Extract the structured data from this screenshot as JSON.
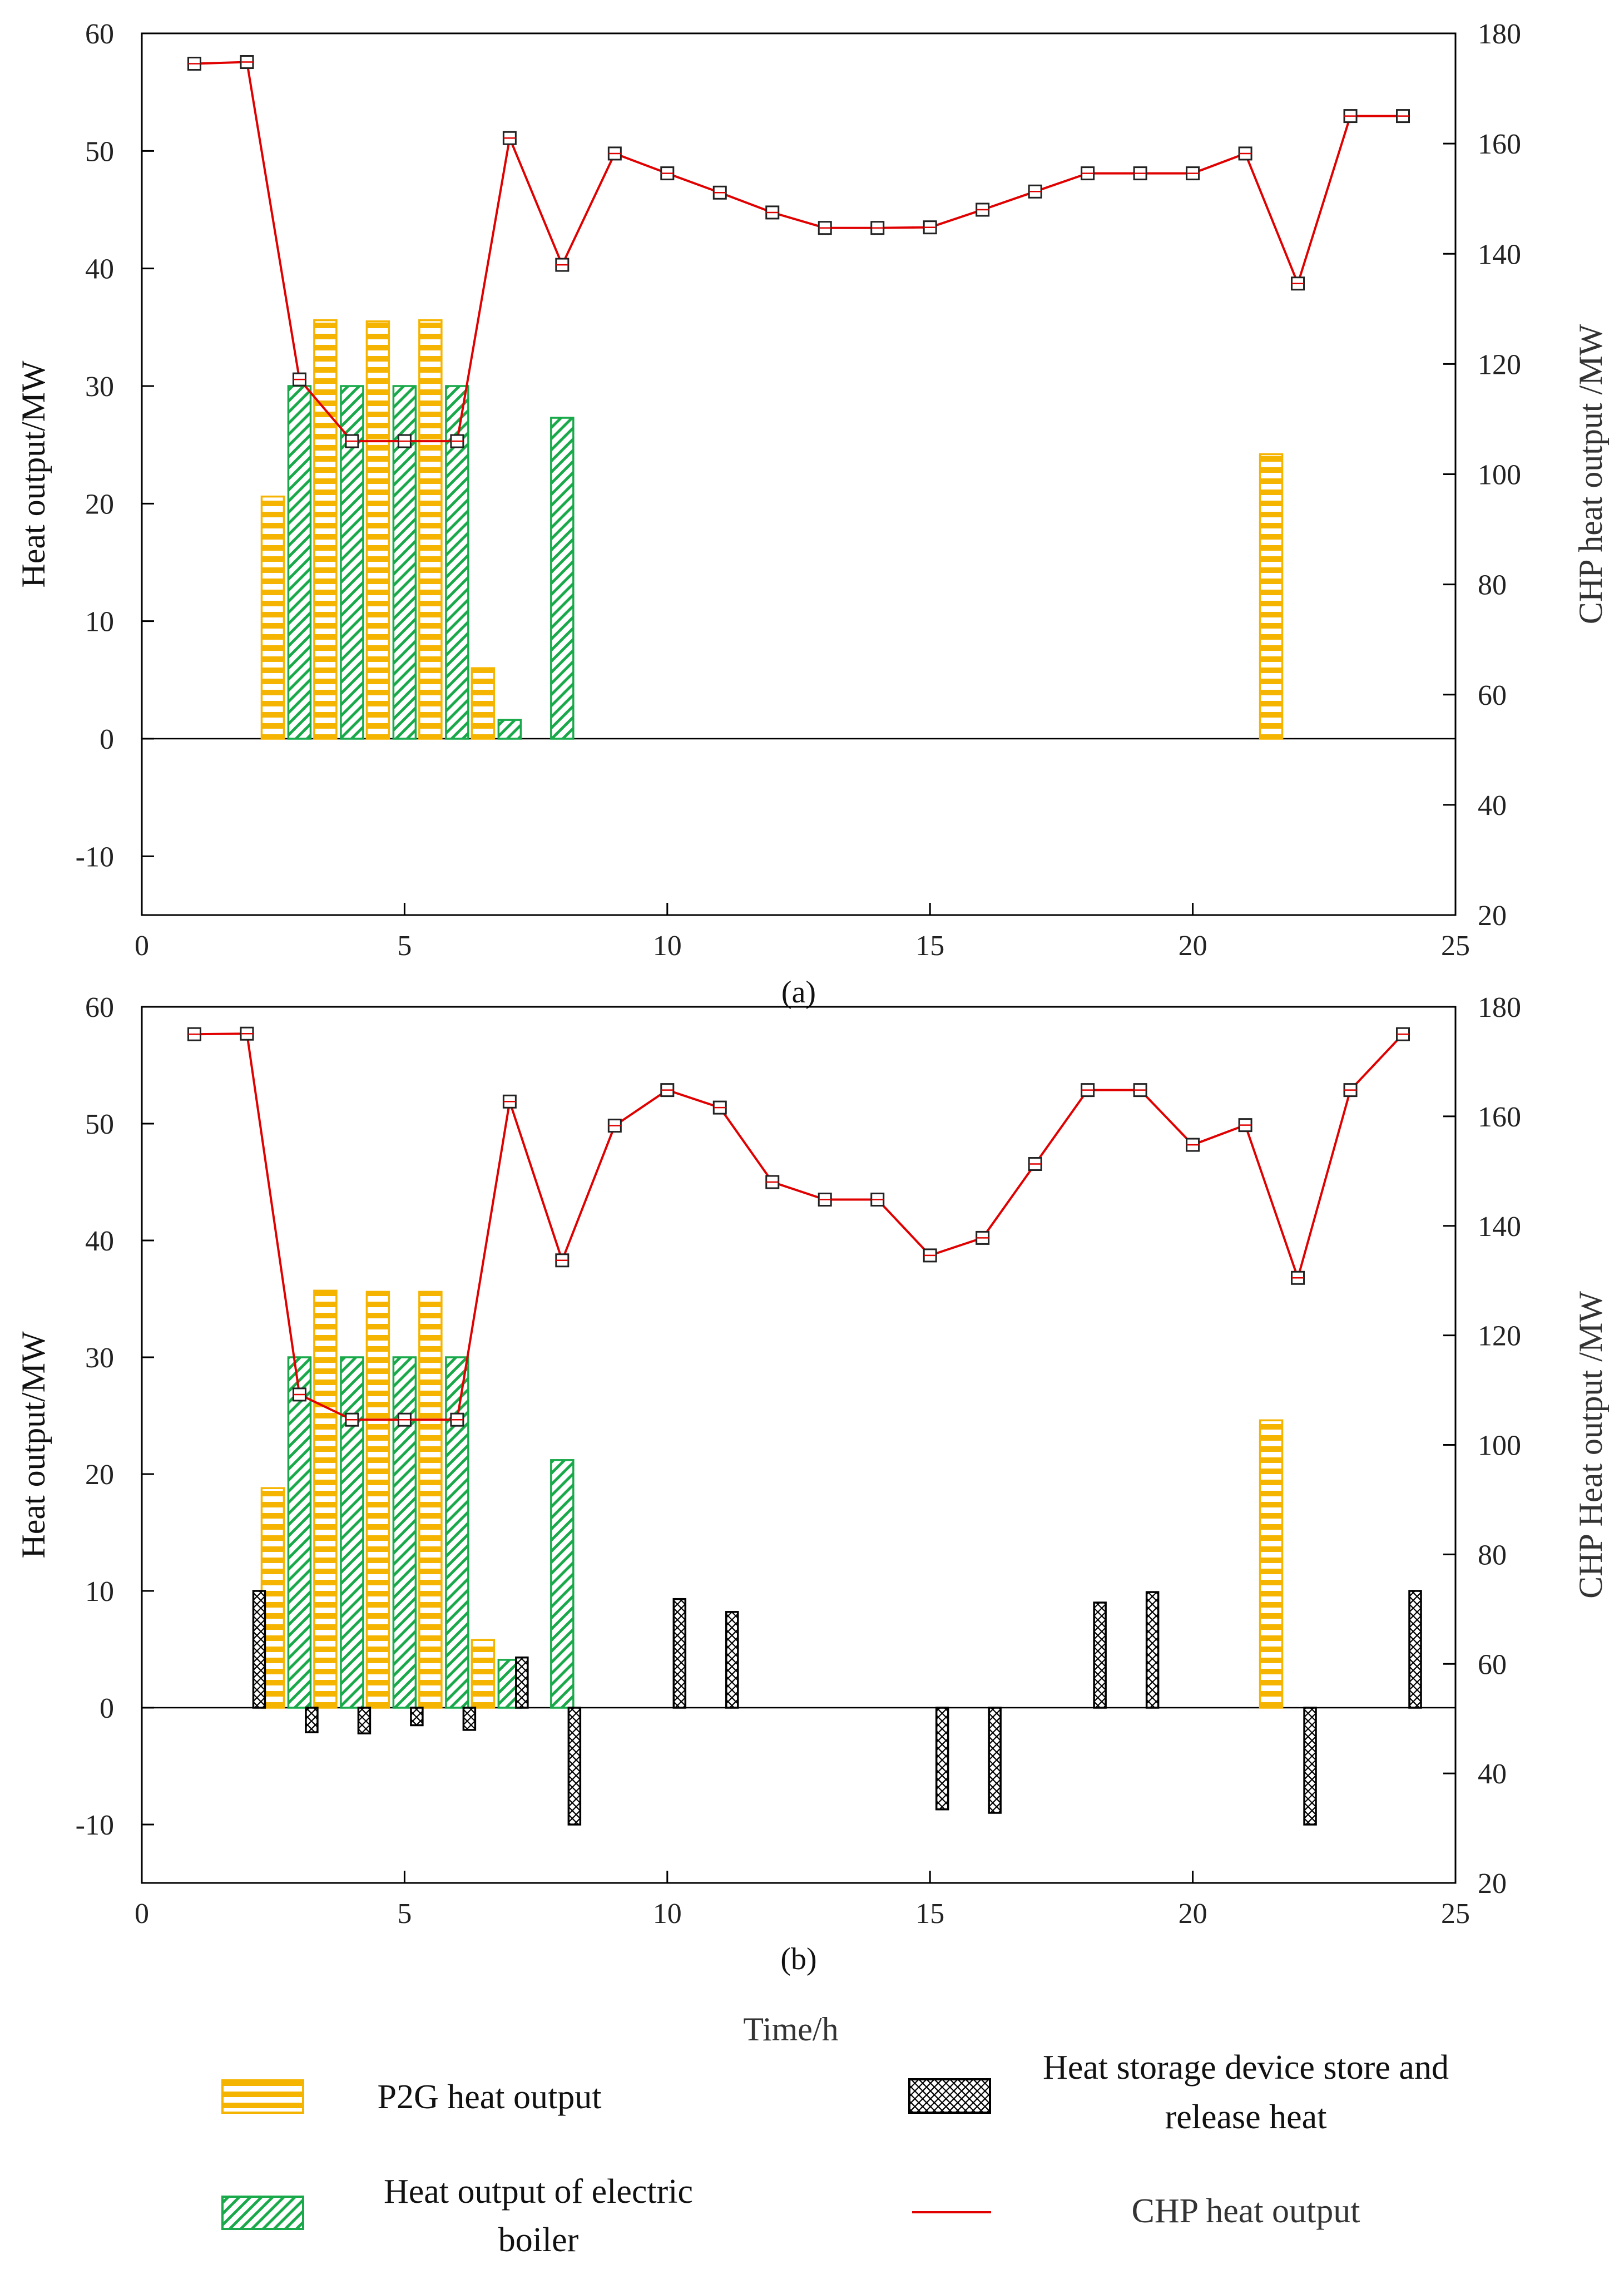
{
  "colors": {
    "p2g": "#f5b400",
    "eb": "#19a94a",
    "storage": "#000000",
    "chp": "#e00000",
    "axis": "#000000"
  },
  "legend": {
    "p2g": "P2G heat output",
    "eb_line1": "Heat output of electric",
    "eb_line2": "boiler",
    "storage_line1": "Heat storage device store and",
    "storage_line2": "release heat",
    "chp": "CHP heat  output"
  },
  "x_label": "Time/h",
  "chart_data": [
    {
      "type": "bar",
      "caption": "(a)",
      "xlim": [
        0,
        25
      ],
      "xticks": [
        0,
        5,
        10,
        15,
        20,
        25
      ],
      "ylim": [
        -15,
        60
      ],
      "yticks": [
        -10,
        0,
        10,
        20,
        30,
        40,
        50,
        60
      ],
      "y2lim": [
        20,
        180
      ],
      "y2ticks": [
        20,
        40,
        60,
        80,
        100,
        120,
        140,
        160,
        180
      ],
      "ylabel": "Heat output/MW",
      "y2label": "CHP heat output /MW",
      "series": [
        {
          "name": "P2G heat output",
          "kind": "p2g",
          "x": [
            3,
            4,
            5,
            6,
            7,
            22
          ],
          "values": [
            20.6,
            35.6,
            35.5,
            35.6,
            6.0,
            24.2
          ]
        },
        {
          "name": "Heat output of electric boiler",
          "kind": "eb",
          "x": [
            3,
            4,
            5,
            6,
            7,
            8
          ],
          "values": [
            30.0,
            30.0,
            30.0,
            30.0,
            1.6,
            27.3
          ]
        }
      ],
      "chp": {
        "name": "CHP heat  output",
        "x": [
          1,
          2,
          3,
          4,
          5,
          6,
          7,
          8,
          9,
          10,
          11,
          12,
          13,
          14,
          15,
          16,
          17,
          18,
          19,
          20,
          21,
          22,
          23,
          24
        ],
        "values": [
          174.5,
          174.8,
          117.2,
          106,
          106,
          106,
          161,
          138,
          158.2,
          154.6,
          151.1,
          147.5,
          144.7,
          144.7,
          144.8,
          148,
          151.3,
          154.6,
          154.6,
          154.6,
          158.2,
          134.6,
          165,
          165
        ]
      }
    },
    {
      "type": "bar",
      "caption": "(b)",
      "xlim": [
        0,
        25
      ],
      "xticks": [
        0,
        5,
        10,
        15,
        20,
        25
      ],
      "ylim": [
        -15,
        60
      ],
      "yticks": [
        -10,
        0,
        10,
        20,
        30,
        40,
        50,
        60
      ],
      "y2lim": [
        20,
        180
      ],
      "y2ticks": [
        20,
        40,
        60,
        80,
        100,
        120,
        140,
        160,
        180
      ],
      "ylabel": "Heat output/MW",
      "y2label": "CHP Heat output /MW",
      "series": [
        {
          "name": "P2G heat output",
          "kind": "p2g",
          "x": [
            3,
            4,
            5,
            6,
            7,
            22
          ],
          "values": [
            18.8,
            35.7,
            35.6,
            35.6,
            5.8,
            24.6
          ]
        },
        {
          "name": "Heat output of electric boiler",
          "kind": "eb",
          "x": [
            3,
            4,
            5,
            6,
            7,
            8
          ],
          "values": [
            30.0,
            30.0,
            30.0,
            30.0,
            4.1,
            21.2
          ]
        },
        {
          "name": "Heat storage device store and release heat",
          "kind": "storage",
          "x": [
            2,
            3,
            4,
            5,
            6,
            7,
            8,
            10,
            11,
            15,
            16,
            18,
            19,
            22,
            24
          ],
          "values": [
            10.0,
            -2.1,
            -2.2,
            -1.5,
            -1.9,
            4.3,
            -10.0,
            9.3,
            8.2,
            -8.7,
            -9.0,
            9.0,
            9.9,
            -10.0,
            10.0
          ]
        }
      ],
      "chp": {
        "name": "CHP heat  output",
        "x": [
          1,
          2,
          3,
          4,
          5,
          6,
          7,
          8,
          9,
          10,
          11,
          12,
          13,
          14,
          15,
          16,
          17,
          18,
          19,
          20,
          21,
          22,
          23,
          24
        ],
        "values": [
          175,
          175.1,
          109.2,
          104.6,
          104.6,
          104.6,
          162.7,
          133.7,
          158.3,
          164.8,
          161.6,
          148,
          144.8,
          144.8,
          134.6,
          137.8,
          151.3,
          164.8,
          164.8,
          154.8,
          158.4,
          130.5,
          164.8,
          175
        ]
      }
    }
  ]
}
